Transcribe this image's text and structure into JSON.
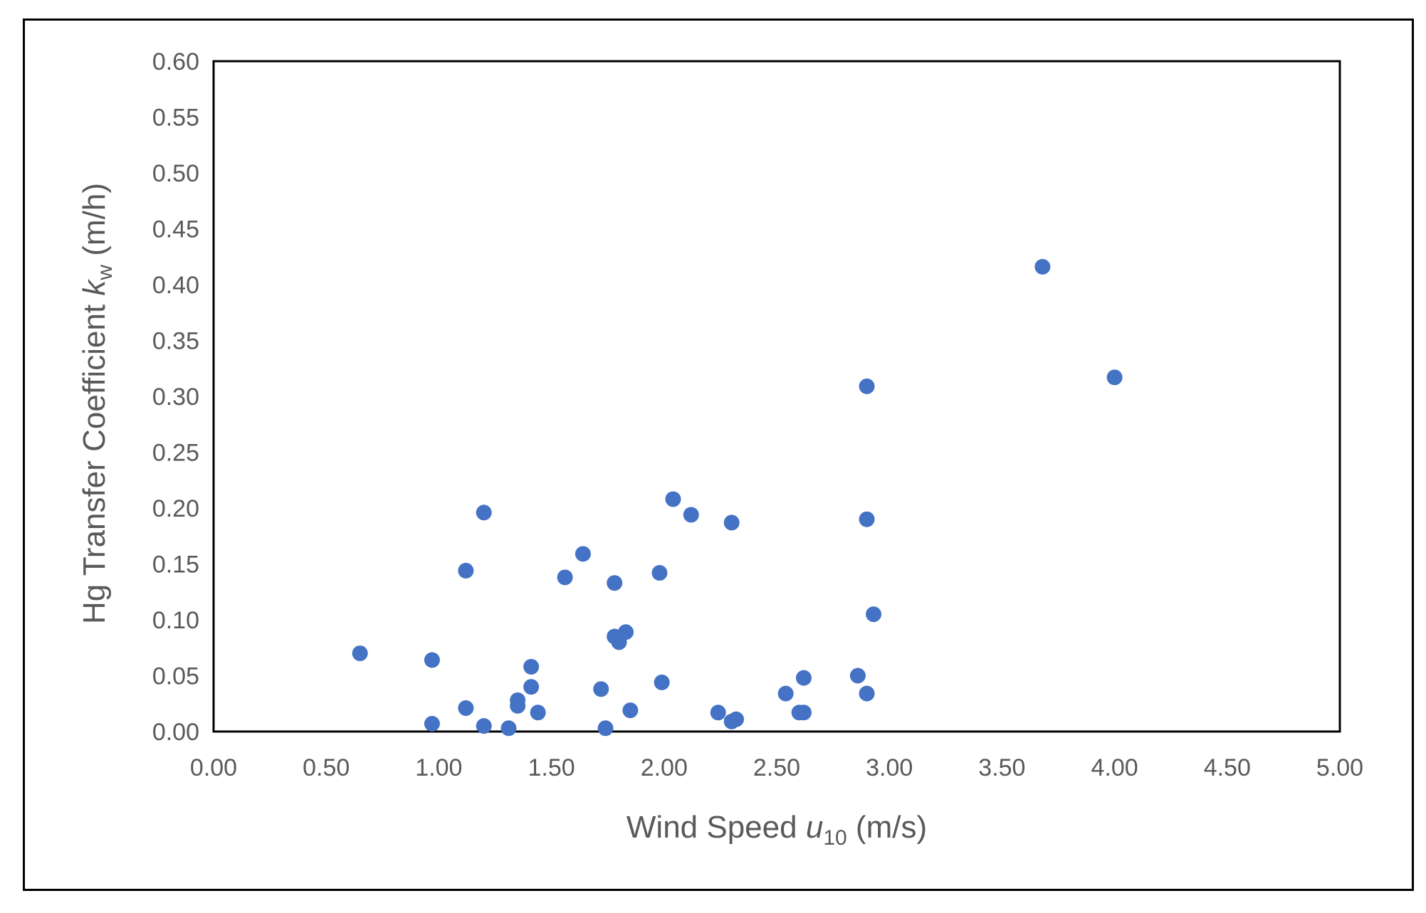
{
  "chart_data": {
    "type": "scatter",
    "xlabel": {
      "prefix": "Wind Speed ",
      "var": "u",
      "sub": "10",
      "suffix": " (m/s)"
    },
    "ylabel": {
      "prefix": "Hg Transfer Coefficient ",
      "var": "k",
      "sub": "w",
      "suffix": " (m/h)"
    },
    "xlim": [
      0,
      5
    ],
    "ylim": [
      0,
      0.6
    ],
    "xticks": [
      "0.00",
      "0.50",
      "1.00",
      "1.50",
      "2.00",
      "2.50",
      "3.00",
      "3.50",
      "4.00",
      "4.50",
      "5.00"
    ],
    "yticks": [
      "0.00",
      "0.05",
      "0.10",
      "0.15",
      "0.20",
      "0.25",
      "0.30",
      "0.35",
      "0.40",
      "0.45",
      "0.50",
      "0.55",
      "0.60"
    ],
    "grid": false,
    "marker_color": "#4472C4",
    "series": [
      {
        "points": [
          [
            0.65,
            0.07
          ],
          [
            0.97,
            0.064
          ],
          [
            0.97,
            0.007
          ],
          [
            1.12,
            0.144
          ],
          [
            1.12,
            0.021
          ],
          [
            1.2,
            0.196
          ],
          [
            1.2,
            0.005
          ],
          [
            1.31,
            0.003
          ],
          [
            1.35,
            0.028
          ],
          [
            1.35,
            0.023
          ],
          [
            1.41,
            0.058
          ],
          [
            1.41,
            0.04
          ],
          [
            1.44,
            0.017
          ],
          [
            1.56,
            0.138
          ],
          [
            1.64,
            0.159
          ],
          [
            1.72,
            0.038
          ],
          [
            1.74,
            0.003
          ],
          [
            1.78,
            0.133
          ],
          [
            1.78,
            0.085
          ],
          [
            1.8,
            0.08
          ],
          [
            1.83,
            0.089
          ],
          [
            1.85,
            0.019
          ],
          [
            1.98,
            0.142
          ],
          [
            1.99,
            0.044
          ],
          [
            2.04,
            0.208
          ],
          [
            2.12,
            0.194
          ],
          [
            2.24,
            0.017
          ],
          [
            2.3,
            0.187
          ],
          [
            2.3,
            0.009
          ],
          [
            2.32,
            0.011
          ],
          [
            2.54,
            0.034
          ],
          [
            2.6,
            0.017
          ],
          [
            2.62,
            0.017
          ],
          [
            2.62,
            0.048
          ],
          [
            2.86,
            0.05
          ],
          [
            2.9,
            0.309
          ],
          [
            2.9,
            0.19
          ],
          [
            2.9,
            0.034
          ],
          [
            2.93,
            0.105
          ],
          [
            3.68,
            0.416
          ],
          [
            4.0,
            0.317
          ]
        ]
      }
    ]
  }
}
